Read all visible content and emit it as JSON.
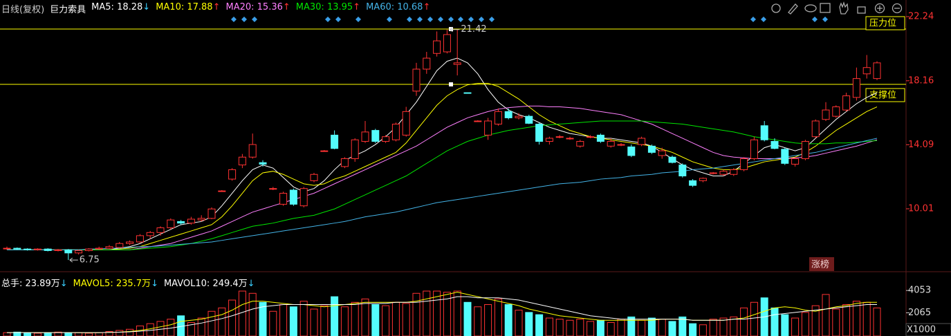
{
  "chart_data": [
    {
      "type": "candlestick",
      "subtitle": "日线(复权)",
      "title": "巨力索具",
      "open": [
        7.5,
        7.5,
        7.45,
        7.4,
        7.45,
        7.35,
        7.4,
        7.2,
        7.35,
        7.45,
        7.5,
        7.55,
        7.8,
        7.9,
        8.3,
        8.5,
        8.8,
        9.2,
        9.1,
        9.3,
        9.4,
        11.15,
        11.9,
        12.8,
        13.3,
        12.95,
        11.3,
        10.3,
        11.2,
        10.2,
        11.8,
        13.7,
        14.7,
        12.7,
        13.2,
        14.3,
        15.0,
        14.3,
        14.4,
        14.7,
        17.5,
        18.9,
        19.9,
        20.0,
        19.2,
        17.4,
        15.6,
        14.7,
        15.4,
        16.2,
        15.8,
        15.9,
        15.4,
        14.3,
        14.6,
        14.5,
        14.0,
        14.6,
        14.7,
        14.0,
        14.1,
        13.95,
        14.1,
        14.0,
        13.4,
        13.3,
        12.8,
        11.8,
        11.8,
        12.25,
        12.2,
        12.2,
        12.5,
        13.2,
        15.3,
        14.3,
        13.8,
        12.85,
        13.2,
        14.6,
        15.7,
        15.9,
        16.3,
        17.1,
        18.6,
        18.3
      ],
      "high": [
        7.6,
        7.55,
        7.5,
        7.5,
        7.5,
        7.45,
        7.45,
        7.4,
        7.5,
        7.6,
        7.7,
        7.9,
        8.0,
        8.4,
        8.6,
        8.9,
        9.4,
        9.3,
        9.5,
        9.6,
        10.1,
        11.2,
        12.6,
        13.5,
        14.8,
        13.1,
        11.4,
        11.1,
        11.3,
        11.4,
        12.3,
        13.75,
        15.0,
        13.3,
        14.5,
        15.6,
        15.1,
        14.7,
        15.5,
        16.5,
        19.3,
        20.0,
        21.3,
        21.42,
        21.42,
        17.4,
        15.65,
        15.8,
        16.4,
        16.4,
        16.1,
        16.0,
        15.5,
        14.6,
        14.7,
        14.6,
        14.4,
        14.7,
        14.8,
        14.5,
        14.2,
        14.1,
        14.6,
        14.1,
        13.9,
        13.4,
        12.9,
        11.9,
        12.0,
        12.35,
        12.5,
        12.6,
        13.3,
        14.6,
        15.6,
        14.5,
        13.9,
        13.3,
        14.4,
        15.7,
        16.8,
        16.6,
        17.4,
        19.0,
        19.8,
        19.4
      ],
      "low": [
        7.4,
        7.4,
        7.35,
        7.35,
        7.3,
        7.3,
        6.75,
        7.1,
        7.3,
        7.4,
        7.45,
        7.5,
        7.7,
        7.85,
        8.1,
        8.3,
        8.7,
        9.0,
        9.0,
        9.2,
        9.35,
        11.1,
        11.8,
        12.6,
        13.2,
        12.7,
        11.2,
        10.2,
        10.2,
        10.1,
        11.7,
        13.65,
        13.8,
        12.6,
        13.0,
        14.2,
        14.2,
        14.2,
        14.3,
        14.6,
        17.2,
        18.6,
        19.7,
        19.9,
        18.5,
        17.35,
        15.55,
        14.4,
        15.3,
        15.7,
        15.7,
        15.4,
        14.1,
        14.1,
        14.5,
        14.4,
        13.9,
        14.5,
        14.2,
        13.9,
        14.0,
        13.3,
        14.0,
        13.5,
        13.2,
        12.9,
        12.0,
        11.4,
        11.7,
        12.2,
        12.1,
        12.1,
        12.4,
        13.1,
        14.3,
        13.8,
        12.8,
        12.7,
        13.1,
        14.5,
        15.6,
        15.8,
        16.2,
        16.9,
        18.3,
        18.2
      ],
      "close": [
        7.5,
        7.45,
        7.4,
        7.45,
        7.35,
        7.4,
        7.2,
        7.35,
        7.45,
        7.5,
        7.6,
        7.8,
        7.9,
        8.3,
        8.5,
        8.8,
        9.3,
        9.1,
        9.35,
        9.4,
        10.0,
        11.15,
        12.5,
        13.3,
        14.1,
        12.85,
        11.3,
        11.0,
        10.3,
        11.3,
        12.2,
        13.7,
        13.85,
        13.2,
        14.4,
        14.9,
        14.3,
        14.6,
        15.4,
        16.2,
        18.9,
        19.6,
        20.7,
        21.1,
        19.3,
        17.36,
        15.6,
        15.6,
        16.2,
        15.8,
        15.9,
        15.45,
        14.3,
        14.5,
        14.6,
        14.5,
        14.3,
        14.6,
        14.3,
        14.3,
        14.1,
        13.4,
        14.5,
        13.6,
        13.7,
        12.96,
        12.1,
        11.5,
        11.95,
        12.3,
        12.4,
        12.5,
        13.2,
        14.4,
        14.4,
        13.85,
        12.9,
        13.2,
        14.3,
        15.6,
        16.3,
        16.5,
        17.2,
        18.3,
        19.0,
        19.3
      ],
      "up_color": "#ff3232",
      "down_color": "#54fcfc",
      "series": [
        {
          "name": "MA5: 18.28",
          "arrow": "↓",
          "arrow_color": "#3ad0ff",
          "color": "#ffffff",
          "values": [
            7.4,
            7.4,
            7.4,
            7.4,
            7.4,
            7.4,
            7.4,
            7.4,
            7.4,
            7.4,
            7.4,
            7.5,
            7.6,
            7.8,
            8.1,
            8.4,
            8.7,
            9.0,
            9.1,
            9.2,
            9.5,
            10.2,
            11.0,
            11.8,
            12.5,
            12.8,
            12.6,
            12.0,
            11.4,
            11.1,
            11.3,
            11.8,
            12.5,
            13.1,
            13.4,
            13.7,
            14.1,
            14.6,
            15.2,
            16.0,
            16.8,
            17.8,
            18.8,
            19.4,
            19.6,
            19.3,
            18.6,
            17.6,
            16.8,
            16.3,
            16.0,
            15.8,
            15.5,
            15.2,
            15.0,
            14.8,
            14.7,
            14.6,
            14.5,
            14.5,
            14.4,
            14.3,
            14.2,
            14.0,
            13.6,
            13.2,
            12.8,
            12.5,
            12.3,
            12.1,
            12.1,
            12.4,
            12.9,
            13.4,
            13.9,
            14.1,
            13.9,
            13.7,
            13.9,
            14.5,
            15.1,
            15.7,
            16.2,
            16.7,
            17.1,
            17.4
          ]
        },
        {
          "name": "MA10: 17.88",
          "arrow": "↑",
          "arrow_color": "#ff3232",
          "color": "#ffff00",
          "values": [
            7.4,
            7.4,
            7.4,
            7.4,
            7.4,
            7.4,
            7.4,
            7.4,
            7.4,
            7.4,
            7.4,
            7.45,
            7.5,
            7.6,
            7.8,
            8.0,
            8.2,
            8.4,
            8.6,
            8.8,
            9.0,
            9.5,
            10.2,
            11.0,
            11.8,
            12.3,
            12.4,
            12.2,
            11.9,
            11.6,
            11.5,
            11.6,
            11.9,
            12.1,
            12.4,
            12.7,
            13.0,
            13.3,
            13.6,
            14.2,
            15.0,
            15.8,
            16.6,
            17.2,
            17.6,
            17.9,
            18.0,
            18.0,
            17.8,
            17.4,
            17.0,
            16.5,
            16.0,
            15.6,
            15.3,
            15.0,
            14.8,
            14.6,
            14.5,
            14.4,
            14.3,
            14.2,
            14.1,
            14.0,
            13.8,
            13.6,
            13.3,
            13.0,
            12.8,
            12.6,
            12.5,
            12.5,
            12.6,
            12.8,
            13.0,
            13.1,
            13.2,
            13.3,
            13.6,
            14.0,
            14.5,
            15.0,
            15.4,
            15.8,
            16.2,
            16.5
          ]
        },
        {
          "name": "MA20: 15.36",
          "arrow": "↑",
          "arrow_color": "#ff3232",
          "color": "#ff80ff",
          "values": [
            7.4,
            7.4,
            7.4,
            7.4,
            7.4,
            7.4,
            7.4,
            7.4,
            7.4,
            7.4,
            7.4,
            7.4,
            7.4,
            7.5,
            7.6,
            7.7,
            7.8,
            8.0,
            8.2,
            8.4,
            8.6,
            8.9,
            9.2,
            9.5,
            9.8,
            10.0,
            10.2,
            10.4,
            10.6,
            10.8,
            11.0,
            11.3,
            11.6,
            11.9,
            12.2,
            12.5,
            12.8,
            13.1,
            13.4,
            13.7,
            14.0,
            14.4,
            14.8,
            15.2,
            15.5,
            15.8,
            16.0,
            16.2,
            16.35,
            16.45,
            16.5,
            16.55,
            16.55,
            16.5,
            16.5,
            16.45,
            16.4,
            16.3,
            16.2,
            16.1,
            16.0,
            15.8,
            15.6,
            15.4,
            15.1,
            14.8,
            14.5,
            14.2,
            13.9,
            13.6,
            13.4,
            13.3,
            13.25,
            13.2,
            13.2,
            13.2,
            13.2,
            13.25,
            13.3,
            13.4,
            13.55,
            13.7,
            13.85,
            14.0,
            14.2,
            14.4
          ]
        },
        {
          "name": "MA30: 13.95",
          "arrow": "↑",
          "arrow_color": "#ff3232",
          "color": "#00e600",
          "values": [
            7.4,
            7.4,
            7.4,
            7.4,
            7.4,
            7.4,
            7.4,
            7.4,
            7.4,
            7.4,
            7.4,
            7.4,
            7.4,
            7.45,
            7.5,
            7.55,
            7.6,
            7.7,
            7.8,
            7.95,
            8.1,
            8.3,
            8.5,
            8.7,
            8.9,
            9.0,
            9.1,
            9.25,
            9.4,
            9.5,
            9.6,
            9.8,
            10.0,
            10.3,
            10.6,
            10.9,
            11.2,
            11.5,
            11.8,
            12.1,
            12.5,
            12.9,
            13.3,
            13.7,
            14.0,
            14.3,
            14.5,
            14.7,
            14.85,
            15.0,
            15.1,
            15.2,
            15.3,
            15.35,
            15.4,
            15.45,
            15.5,
            15.55,
            15.6,
            15.6,
            15.6,
            15.6,
            15.6,
            15.55,
            15.5,
            15.45,
            15.4,
            15.3,
            15.2,
            15.1,
            15.0,
            14.9,
            14.75,
            14.6,
            14.5,
            14.4,
            14.3,
            14.2,
            14.15,
            14.15,
            14.15,
            14.2,
            14.2,
            14.25,
            14.3,
            14.35
          ]
        },
        {
          "name": "MA60: 10.68",
          "arrow": "↑",
          "arrow_color": "#ff3232",
          "color": "#44b4e8",
          "values": [
            7.4,
            7.4,
            7.4,
            7.4,
            7.4,
            7.4,
            7.4,
            7.4,
            7.45,
            7.45,
            7.5,
            7.5,
            7.55,
            7.6,
            7.6,
            7.65,
            7.7,
            7.75,
            7.8,
            7.85,
            7.9,
            8.0,
            8.1,
            8.2,
            8.3,
            8.4,
            8.5,
            8.6,
            8.7,
            8.8,
            8.9,
            9.0,
            9.1,
            9.2,
            9.35,
            9.5,
            9.6,
            9.7,
            9.8,
            9.95,
            10.1,
            10.25,
            10.4,
            10.5,
            10.6,
            10.7,
            10.8,
            10.9,
            11.0,
            11.1,
            11.2,
            11.3,
            11.4,
            11.5,
            11.6,
            11.65,
            11.7,
            11.8,
            11.9,
            11.95,
            12.0,
            12.1,
            12.15,
            12.2,
            12.3,
            12.35,
            12.4,
            12.5,
            12.55,
            12.6,
            12.7,
            12.8,
            12.9,
            13.0,
            13.1,
            13.2,
            13.3,
            13.4,
            13.5,
            13.6,
            13.75,
            13.9,
            14.05,
            14.2,
            14.35,
            14.5
          ]
        }
      ],
      "ylim": [
        6.05,
        23.3
      ],
      "yticks": [
        22.24,
        18.16,
        14.09,
        10.01
      ],
      "axis_color": "#ff3232",
      "high_label": "21.42",
      "low_label": "6.75",
      "reference_lines": [
        {
          "label": "压力位",
          "value": 21.45,
          "color": "#ffff00"
        },
        {
          "label": "支撑位",
          "value": 17.93,
          "color": "#ffff00"
        }
      ],
      "badge": "涨榜"
    },
    {
      "type": "bar",
      "name": "总手: 23.89万",
      "arrow": "↓",
      "arrow_color": "#3ad0ff",
      "values": [
        300,
        350,
        300,
        250,
        300,
        350,
        250,
        300,
        250,
        300,
        400,
        500,
        600,
        900,
        1100,
        1300,
        1500,
        1800,
        1200,
        1600,
        2200,
        2500,
        3200,
        4000,
        3800,
        3000,
        2200,
        2800,
        2600,
        3100,
        2400,
        2700,
        3500,
        2600,
        3000,
        3300,
        2800,
        2700,
        3000,
        2900,
        3800,
        4000,
        4000,
        3900,
        4000,
        3000,
        2600,
        2800,
        3300,
        2800,
        2300,
        2100,
        1900,
        1600,
        1500,
        1400,
        1500,
        1300,
        1400,
        1200,
        1500,
        1700,
        1400,
        1600,
        1500,
        1300,
        1700,
        1100,
        1000,
        1500,
        1600,
        1700,
        2500,
        3000,
        3400,
        2500,
        1900,
        1600,
        2100,
        2700,
        3700,
        2400,
        2800,
        3100,
        3000,
        2500
      ],
      "series": [
        {
          "name": "MAVOL5: 235.7万",
          "arrow": "↓",
          "arrow_color": "#3ad0ff",
          "color": "#ffff00",
          "values": [
            300,
            310,
            310,
            300,
            300,
            310,
            310,
            290,
            290,
            290,
            320,
            350,
            410,
            500,
            640,
            820,
            1000,
            1300,
            1400,
            1500,
            1700,
            1900,
            2300,
            2800,
            3100,
            3100,
            3000,
            2900,
            2800,
            2800,
            2700,
            2600,
            2700,
            2800,
            2900,
            3000,
            3000,
            3000,
            3000,
            3000,
            3100,
            3300,
            3500,
            3700,
            3900,
            3700,
            3500,
            3300,
            3100,
            2900,
            2700,
            2400,
            2200,
            2000,
            1800,
            1700,
            1600,
            1500,
            1400,
            1400,
            1400,
            1400,
            1400,
            1400,
            1500,
            1500,
            1500,
            1400,
            1400,
            1400,
            1400,
            1500,
            1600,
            1900,
            2200,
            2500,
            2600,
            2500,
            2300,
            2200,
            2400,
            2600,
            2700,
            2900,
            3000,
            3000
          ]
        },
        {
          "name": "MAVOL10: 249.4万",
          "arrow": "↓",
          "arrow_color": "#3ad0ff",
          "color": "#ffffff",
          "values": [
            300,
            300,
            300,
            300,
            300,
            300,
            300,
            300,
            300,
            300,
            320,
            340,
            370,
            430,
            500,
            600,
            700,
            850,
            1000,
            1150,
            1350,
            1550,
            1800,
            2100,
            2400,
            2600,
            2700,
            2800,
            2800,
            2800,
            2800,
            2800,
            2800,
            2800,
            2800,
            2900,
            2900,
            2900,
            3000,
            3000,
            3000,
            3100,
            3200,
            3300,
            3500,
            3500,
            3400,
            3400,
            3400,
            3300,
            3200,
            3000,
            2800,
            2600,
            2400,
            2200,
            2000,
            1800,
            1700,
            1600,
            1500,
            1500,
            1500,
            1500,
            1500,
            1500,
            1500,
            1400,
            1400,
            1400,
            1400,
            1500,
            1500,
            1600,
            1700,
            1900,
            2000,
            2100,
            2200,
            2300,
            2400,
            2500,
            2600,
            2700,
            2800,
            2800
          ]
        }
      ],
      "ylim": [
        0,
        5540
      ],
      "yticks": [
        4053,
        2065
      ],
      "y_unit": "X1000"
    }
  ]
}
